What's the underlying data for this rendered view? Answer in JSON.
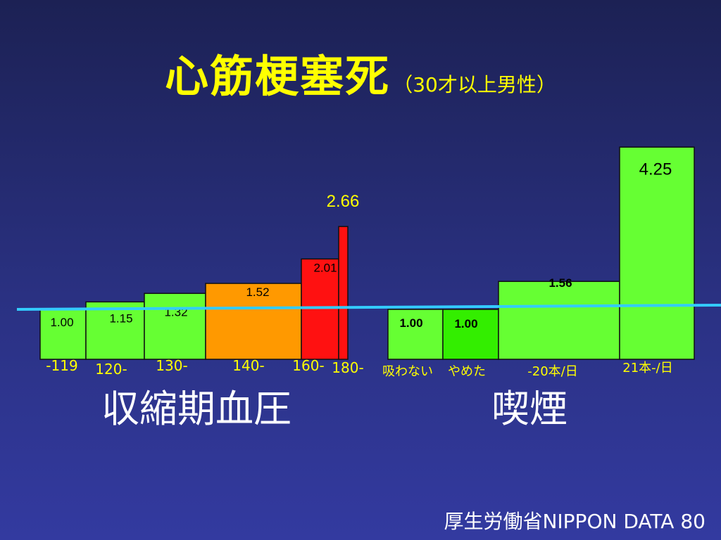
{
  "title": {
    "main": "心筋梗塞死",
    "sub": "（30才以上男性）"
  },
  "source": "厚生労働省NIPPON DATA 80",
  "chart_data": [
    {
      "type": "bar",
      "group_label": "収縮期血圧",
      "categories": [
        "-119",
        "120-",
        "130-",
        "140-",
        "160-",
        "180-"
      ],
      "values": [
        1.0,
        1.15,
        1.32,
        1.52,
        2.01,
        2.66
      ],
      "value_labels": [
        "1.00",
        "1.15",
        "1.32",
        "1.52",
        "2.01",
        "2.66"
      ],
      "colors": [
        "#66ff33",
        "#66ff33",
        "#66ff33",
        "#ff9900",
        "#ff1111",
        "#ff1111"
      ]
    },
    {
      "type": "bar",
      "group_label": "喫煙",
      "categories": [
        "吸わない",
        "やめた",
        "-20本/日",
        "21本-/日"
      ],
      "values": [
        1.0,
        1.0,
        1.56,
        4.25
      ],
      "value_labels": [
        "1.00",
        "1.00",
        "1.56",
        "4.25"
      ],
      "colors": [
        "#66ff33",
        "#33ee00",
        "#66ff33",
        "#66ff33"
      ]
    }
  ],
  "reference_line_color": "#33ccff"
}
